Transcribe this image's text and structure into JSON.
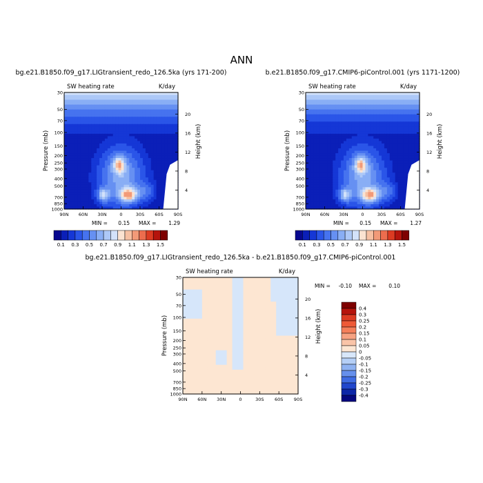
{
  "page_title": "ANN",
  "colors": {
    "frame": "#000000",
    "background": "#ffffff"
  },
  "chart_data": [
    {
      "type": "heatmap",
      "title": "bg.e21.B1850.f09_g17.LIGtransient_redo_126.5ka (yrs 171-200)",
      "subtitle_left": "SW heating rate",
      "subtitle_right": "K/day",
      "ylabel": "Pressure (mb)",
      "ylabel_right": "Height (km)",
      "x_ticks": [
        "90N",
        "60N",
        "30N",
        "0",
        "30S",
        "60S",
        "90S"
      ],
      "y_ticks": [
        "30",
        "50",
        "70",
        "100",
        "150",
        "200",
        "250",
        "300",
        "400",
        "500",
        "700",
        "850",
        "1000"
      ],
      "y_ticks_right": [
        "20",
        "16",
        "12",
        "8",
        "4"
      ],
      "min_label": "MIN =",
      "min_value": "0.15",
      "max_label": "MAX =",
      "max_value": "1.29",
      "colorbar_labels": [
        "0.1",
        "0.3",
        "0.5",
        "0.7",
        "0.9",
        "1.1",
        "1.3",
        "1.5"
      ]
    },
    {
      "type": "heatmap",
      "title": "b.e21.B1850.f09_g17.CMIP6-piControl.001 (yrs 1171-1200)",
      "subtitle_left": "SW heating rate",
      "subtitle_right": "K/day",
      "ylabel": "Pressure (mb)",
      "ylabel_right": "Height (km)",
      "x_ticks": [
        "90N",
        "60N",
        "30N",
        "0",
        "30S",
        "60S",
        "90S"
      ],
      "y_ticks": [
        "30",
        "50",
        "70",
        "100",
        "150",
        "200",
        "250",
        "300",
        "400",
        "500",
        "700",
        "850",
        "1000"
      ],
      "y_ticks_right": [
        "20",
        "16",
        "12",
        "8",
        "4"
      ],
      "min_label": "MIN =",
      "min_value": "0.15",
      "max_label": "MAX =",
      "max_value": "1.27",
      "colorbar_labels": [
        "0.1",
        "0.3",
        "0.5",
        "0.7",
        "0.9",
        "1.1",
        "1.3",
        "1.5"
      ]
    },
    {
      "type": "heatmap",
      "title": "bg.e21.B1850.f09_g17.LIGtransient_redo_126.5ka - b.e21.B1850.f09_g17.CMIP6-piControl.001",
      "subtitle_left": "SW heating rate",
      "subtitle_right": "K/day",
      "ylabel": "Pressure (mb)",
      "ylabel_right": "Height (km)",
      "x_ticks": [
        "90N",
        "60N",
        "30N",
        "0",
        "30S",
        "60S",
        "90S"
      ],
      "y_ticks": [
        "30",
        "50",
        "70",
        "100",
        "150",
        "200",
        "250",
        "300",
        "400",
        "500",
        "700",
        "850",
        "1000"
      ],
      "y_ticks_right": [
        "20",
        "16",
        "12",
        "8",
        "4"
      ],
      "min_label": "MIN =",
      "min_value": "-0.10",
      "max_label": "MAX =",
      "max_value": "0.10",
      "colorbar_labels": [
        "0.4",
        "0.3",
        "0.25",
        "0.2",
        "0.15",
        "0.1",
        "0.05",
        "0",
        "-0.05",
        "-0.1",
        "-0.15",
        "-0.2",
        "-0.25",
        "-0.3",
        "-0.4"
      ]
    }
  ]
}
